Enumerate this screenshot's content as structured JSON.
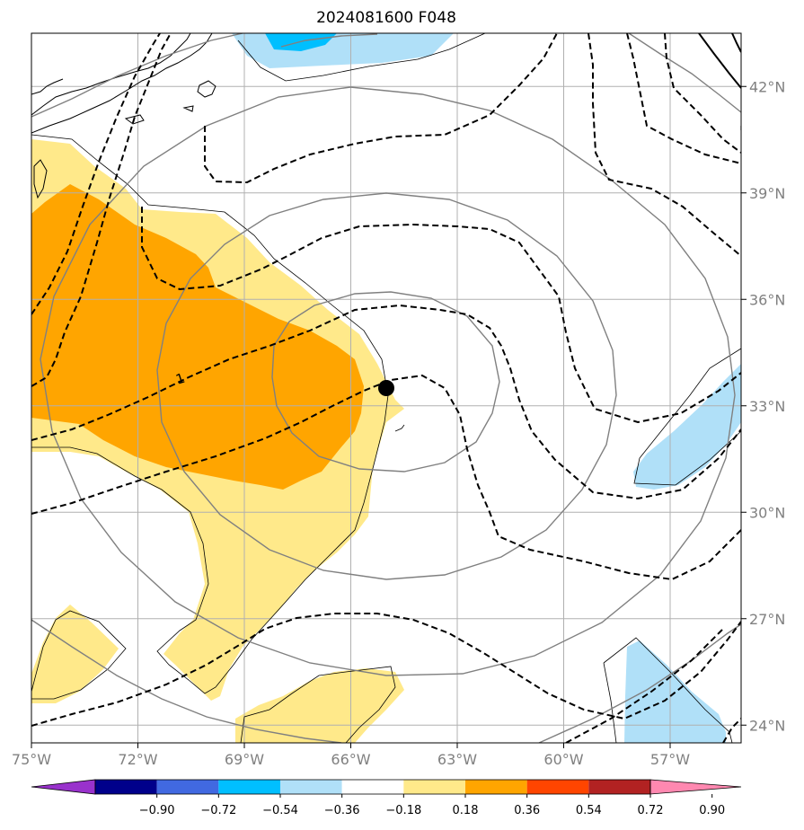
{
  "title": "2024081600 F048",
  "map": {
    "lon_range": [
      -75,
      -55
    ],
    "lat_range": [
      23.5,
      43.5
    ],
    "lon_ticks": [
      {
        "value": -75,
        "label": "75°W"
      },
      {
        "value": -72,
        "label": "72°W"
      },
      {
        "value": -69,
        "label": "69°W"
      },
      {
        "value": -66,
        "label": "66°W"
      },
      {
        "value": -63,
        "label": "63°W"
      },
      {
        "value": -60,
        "label": "60°W"
      },
      {
        "value": -57,
        "label": "57°W"
      }
    ],
    "lat_ticks": [
      {
        "value": 42,
        "label": "42°N"
      },
      {
        "value": 39,
        "label": "39°N"
      },
      {
        "value": 36,
        "label": "36°N"
      },
      {
        "value": 33,
        "label": "33°N"
      },
      {
        "value": 30,
        "label": "30°N"
      },
      {
        "value": 27,
        "label": "27°N"
      },
      {
        "value": 24,
        "label": "24°N"
      }
    ],
    "grid": true,
    "storm_center": {
      "lon": -65.0,
      "lat": 33.5
    },
    "contour_label": "1",
    "colors": {
      "orange": "#ffa500",
      "light_yellow": "#ffe98a",
      "light_blue": "#b0e0f8",
      "deep_sky_blue": "#00bfff",
      "grid": "#b0b0b0",
      "gray_contour": "#808080"
    }
  },
  "colorbar": {
    "labels": [
      "−0.90",
      "−0.72",
      "−0.54",
      "−0.36",
      "−0.18",
      "0.18",
      "0.36",
      "0.54",
      "0.72",
      "0.90"
    ],
    "colors": [
      "#9932cc",
      "#00008b",
      "#4169e1",
      "#00bfff",
      "#b0e0f8",
      "#ffffff",
      "#ffe98a",
      "#ffa500",
      "#ff4500",
      "#b22222",
      "#ff88b0"
    ],
    "extend": "both"
  }
}
